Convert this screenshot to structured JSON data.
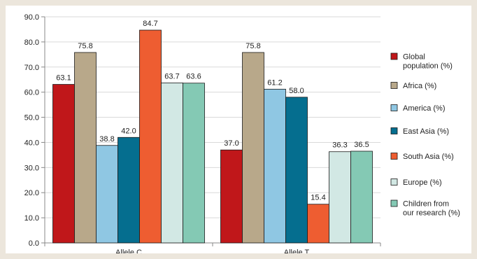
{
  "chart_data": {
    "type": "bar",
    "title": "",
    "xlabel": "",
    "ylabel": "",
    "ylim": [
      0,
      90
    ],
    "yticks": [
      "0.0",
      "10.0",
      "20.0",
      "30.0",
      "40.0",
      "50.0",
      "60.0",
      "70.0",
      "80.0",
      "90.0"
    ],
    "grid": true,
    "legend_position": "right",
    "categories": [
      "Allele C",
      "Allele T"
    ],
    "series": [
      {
        "name": "Global population  (%)",
        "color": "#c0171a",
        "values": [
          63.1,
          37.0
        ],
        "labels": [
          "63.1",
          "37.0"
        ]
      },
      {
        "name": "Africa  (%)",
        "color": "#b8a88a",
        "values": [
          75.8,
          75.8
        ],
        "labels": [
          "75.8",
          "75.8"
        ]
      },
      {
        "name": "America  (%)",
        "color": "#8fc7e3",
        "values": [
          38.8,
          61.2
        ],
        "labels": [
          "38.8",
          "61.2"
        ]
      },
      {
        "name": "East Asia (%)",
        "color": "#056e8f",
        "values": [
          42.0,
          58.0
        ],
        "labels": [
          "42.0",
          "58.0"
        ]
      },
      {
        "name": "South Asia  (%)",
        "color": "#ee5d31",
        "values": [
          84.7,
          15.4
        ],
        "labels": [
          "84.7",
          "15.4"
        ]
      },
      {
        "name": "Europe (%)",
        "color": "#d2e8e4",
        "values": [
          63.7,
          36.3
        ],
        "labels": [
          "63.7",
          "36.3"
        ]
      },
      {
        "name": "Children from our research (%)",
        "color": "#84c9b4",
        "values": [
          63.6,
          36.5
        ],
        "labels": [
          "63.6",
          "36.5"
        ]
      }
    ],
    "legend_lines": [
      [
        "Global",
        "population  (%)"
      ],
      [
        "Africa  (%)"
      ],
      [
        "America  (%)"
      ],
      [
        "East Asia (%)"
      ],
      [
        "South Asia  (%)"
      ],
      [
        "Europe (%)"
      ],
      [
        "Children from",
        "our research (%)"
      ]
    ]
  }
}
